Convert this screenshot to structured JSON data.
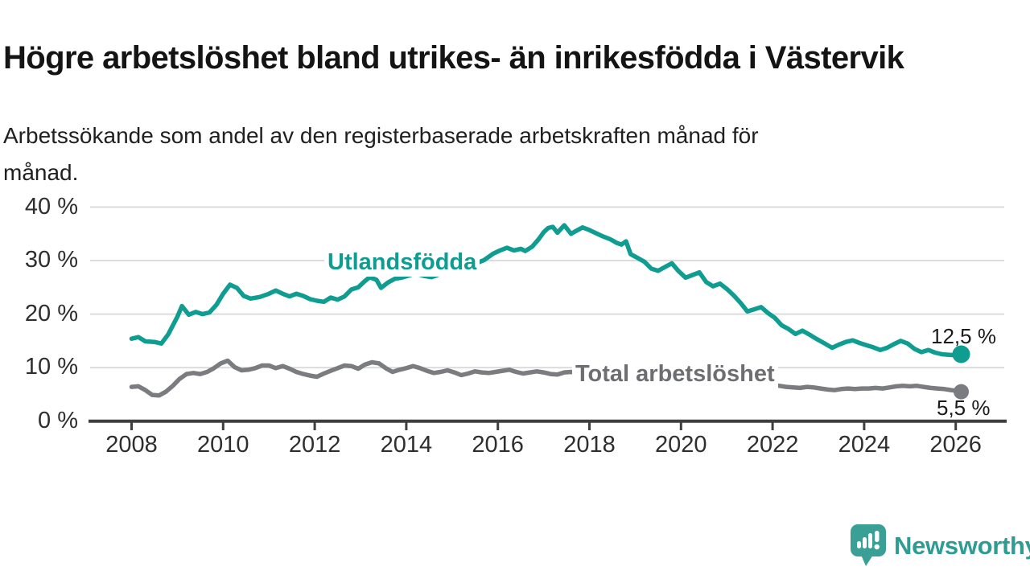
{
  "header": {
    "title": "Högre arbetslöshet bland utrikes- än inrikesfödda i Västervik",
    "subtitle_line1": "Arbetssökande som andel av den registerbaserade arbetskraften månad för",
    "subtitle_line2": "månad."
  },
  "chart_data": {
    "type": "line",
    "unit": "%",
    "grid": "horizontal",
    "legend_position": "inline-labels",
    "xlim": [
      2008,
      2026.4
    ],
    "ylim": [
      0,
      40
    ],
    "x_ticks": [
      2008,
      2010,
      2012,
      2014,
      2016,
      2018,
      2020,
      2022,
      2024,
      2026
    ],
    "y_ticks": [
      {
        "value": 40,
        "label": "40 %"
      },
      {
        "value": 30,
        "label": "30 %"
      },
      {
        "value": 20,
        "label": "20 %"
      },
      {
        "value": 10,
        "label": "10 %"
      },
      {
        "value": 0,
        "label": "0 %"
      }
    ],
    "series": [
      {
        "key": "utlandsfodda",
        "name": "Utlandsfödda",
        "color": "#0f9c91",
        "end_label": "12,5 %",
        "end_value": 12.5,
        "points": [
          [
            2008.0,
            15.4
          ],
          [
            2008.15,
            15.7
          ],
          [
            2008.3,
            14.9
          ],
          [
            2008.5,
            14.8
          ],
          [
            2008.65,
            14.5
          ],
          [
            2008.8,
            16.2
          ],
          [
            2009.0,
            19.5
          ],
          [
            2009.1,
            21.5
          ],
          [
            2009.25,
            19.9
          ],
          [
            2009.4,
            20.4
          ],
          [
            2009.55,
            20.0
          ],
          [
            2009.7,
            20.3
          ],
          [
            2009.85,
            21.7
          ],
          [
            2010.0,
            23.8
          ],
          [
            2010.15,
            25.5
          ],
          [
            2010.3,
            24.9
          ],
          [
            2010.45,
            23.4
          ],
          [
            2010.6,
            22.9
          ],
          [
            2010.8,
            23.2
          ],
          [
            2011.0,
            23.8
          ],
          [
            2011.15,
            24.4
          ],
          [
            2011.3,
            23.8
          ],
          [
            2011.45,
            23.3
          ],
          [
            2011.6,
            23.8
          ],
          [
            2011.75,
            23.4
          ],
          [
            2011.9,
            22.8
          ],
          [
            2012.05,
            22.5
          ],
          [
            2012.2,
            22.3
          ],
          [
            2012.35,
            23.1
          ],
          [
            2012.5,
            22.7
          ],
          [
            2012.65,
            23.3
          ],
          [
            2012.8,
            24.6
          ],
          [
            2012.95,
            25.0
          ],
          [
            2013.1,
            26.2
          ],
          [
            2013.2,
            26.9
          ],
          [
            2013.35,
            26.4
          ],
          [
            2013.45,
            24.9
          ],
          [
            2013.6,
            25.9
          ],
          [
            2013.75,
            26.6
          ],
          [
            2013.9,
            26.8
          ],
          [
            2014.05,
            27.2
          ],
          [
            2014.2,
            27.6
          ],
          [
            2014.4,
            27.1
          ],
          [
            2014.55,
            26.9
          ],
          [
            2014.75,
            27.5
          ],
          [
            2014.9,
            27.9
          ],
          [
            2015.1,
            28.4
          ],
          [
            2015.3,
            28.9
          ],
          [
            2015.5,
            29.4
          ],
          [
            2015.7,
            30.1
          ],
          [
            2015.9,
            31.3
          ],
          [
            2016.05,
            31.9
          ],
          [
            2016.2,
            32.4
          ],
          [
            2016.35,
            31.9
          ],
          [
            2016.5,
            32.2
          ],
          [
            2016.6,
            31.8
          ],
          [
            2016.75,
            32.6
          ],
          [
            2016.9,
            34.1
          ],
          [
            2017.0,
            35.3
          ],
          [
            2017.1,
            36.1
          ],
          [
            2017.2,
            36.3
          ],
          [
            2017.3,
            35.2
          ],
          [
            2017.45,
            36.6
          ],
          [
            2017.6,
            35.0
          ],
          [
            2017.7,
            35.5
          ],
          [
            2017.85,
            36.2
          ],
          [
            2018.0,
            35.7
          ],
          [
            2018.15,
            35.1
          ],
          [
            2018.3,
            34.5
          ],
          [
            2018.45,
            34.0
          ],
          [
            2018.6,
            33.3
          ],
          [
            2018.7,
            33.0
          ],
          [
            2018.8,
            33.6
          ],
          [
            2018.9,
            31.2
          ],
          [
            2019.05,
            30.5
          ],
          [
            2019.2,
            29.8
          ],
          [
            2019.35,
            28.5
          ],
          [
            2019.5,
            28.1
          ],
          [
            2019.65,
            28.8
          ],
          [
            2019.8,
            29.5
          ],
          [
            2019.95,
            28.0
          ],
          [
            2020.1,
            26.8
          ],
          [
            2020.25,
            27.3
          ],
          [
            2020.4,
            27.8
          ],
          [
            2020.55,
            26.0
          ],
          [
            2020.7,
            25.2
          ],
          [
            2020.85,
            25.7
          ],
          [
            2021.0,
            24.7
          ],
          [
            2021.15,
            23.5
          ],
          [
            2021.3,
            22.1
          ],
          [
            2021.45,
            20.5
          ],
          [
            2021.6,
            20.9
          ],
          [
            2021.75,
            21.3
          ],
          [
            2021.9,
            20.2
          ],
          [
            2022.05,
            19.3
          ],
          [
            2022.2,
            17.9
          ],
          [
            2022.35,
            17.2
          ],
          [
            2022.5,
            16.3
          ],
          [
            2022.65,
            16.9
          ],
          [
            2022.8,
            16.2
          ],
          [
            2022.95,
            15.4
          ],
          [
            2023.1,
            14.7
          ],
          [
            2023.3,
            13.7
          ],
          [
            2023.45,
            14.3
          ],
          [
            2023.6,
            14.8
          ],
          [
            2023.75,
            15.1
          ],
          [
            2023.9,
            14.6
          ],
          [
            2024.05,
            14.2
          ],
          [
            2024.2,
            13.8
          ],
          [
            2024.35,
            13.3
          ],
          [
            2024.5,
            13.7
          ],
          [
            2024.65,
            14.4
          ],
          [
            2024.8,
            15.0
          ],
          [
            2024.95,
            14.5
          ],
          [
            2025.1,
            13.5
          ],
          [
            2025.25,
            12.9
          ],
          [
            2025.4,
            13.3
          ],
          [
            2025.55,
            12.8
          ],
          [
            2025.7,
            12.5
          ],
          [
            2025.85,
            12.4
          ],
          [
            2026.0,
            12.3
          ],
          [
            2026.12,
            12.5
          ]
        ]
      },
      {
        "key": "total",
        "name": "Total arbetslöshet",
        "color": "#7b7c80",
        "end_label": "5,5 %",
        "end_value": 5.5,
        "points": [
          [
            2008.0,
            6.4
          ],
          [
            2008.15,
            6.5
          ],
          [
            2008.3,
            5.8
          ],
          [
            2008.45,
            4.9
          ],
          [
            2008.6,
            4.8
          ],
          [
            2008.75,
            5.5
          ],
          [
            2008.9,
            6.6
          ],
          [
            2009.05,
            7.9
          ],
          [
            2009.2,
            8.8
          ],
          [
            2009.35,
            9.0
          ],
          [
            2009.5,
            8.8
          ],
          [
            2009.65,
            9.2
          ],
          [
            2009.8,
            9.9
          ],
          [
            2009.95,
            10.8
          ],
          [
            2010.1,
            11.3
          ],
          [
            2010.25,
            10.1
          ],
          [
            2010.4,
            9.5
          ],
          [
            2010.55,
            9.6
          ],
          [
            2010.7,
            9.9
          ],
          [
            2010.85,
            10.4
          ],
          [
            2011.0,
            10.4
          ],
          [
            2011.15,
            9.9
          ],
          [
            2011.3,
            10.3
          ],
          [
            2011.45,
            9.8
          ],
          [
            2011.6,
            9.2
          ],
          [
            2011.75,
            8.8
          ],
          [
            2011.9,
            8.5
          ],
          [
            2012.05,
            8.3
          ],
          [
            2012.2,
            8.9
          ],
          [
            2012.35,
            9.4
          ],
          [
            2012.5,
            9.9
          ],
          [
            2012.65,
            10.4
          ],
          [
            2012.8,
            10.3
          ],
          [
            2012.95,
            9.8
          ],
          [
            2013.1,
            10.6
          ],
          [
            2013.25,
            11.0
          ],
          [
            2013.4,
            10.8
          ],
          [
            2013.55,
            9.9
          ],
          [
            2013.7,
            9.2
          ],
          [
            2013.85,
            9.6
          ],
          [
            2014.0,
            9.9
          ],
          [
            2014.15,
            10.3
          ],
          [
            2014.3,
            9.9
          ],
          [
            2014.45,
            9.4
          ],
          [
            2014.6,
            9.0
          ],
          [
            2014.75,
            9.2
          ],
          [
            2014.9,
            9.5
          ],
          [
            2015.05,
            9.1
          ],
          [
            2015.2,
            8.6
          ],
          [
            2015.35,
            8.9
          ],
          [
            2015.5,
            9.3
          ],
          [
            2015.65,
            9.1
          ],
          [
            2015.8,
            9.0
          ],
          [
            2015.95,
            9.2
          ],
          [
            2016.1,
            9.4
          ],
          [
            2016.25,
            9.6
          ],
          [
            2016.4,
            9.2
          ],
          [
            2016.55,
            8.9
          ],
          [
            2016.7,
            9.1
          ],
          [
            2016.85,
            9.3
          ],
          [
            2017.0,
            9.1
          ],
          [
            2017.15,
            8.8
          ],
          [
            2017.3,
            8.7
          ],
          [
            2017.45,
            9.1
          ],
          [
            2017.6,
            9.2
          ],
          [
            2017.75,
            8.9
          ],
          [
            2017.9,
            8.8
          ],
          [
            2018.05,
            9.0
          ],
          [
            2018.2,
            9.2
          ],
          [
            2018.35,
            8.9
          ],
          [
            2018.5,
            8.5
          ],
          [
            2018.65,
            8.6
          ],
          [
            2018.8,
            8.7
          ],
          [
            2018.95,
            8.4
          ],
          [
            2019.15,
            8.1
          ],
          [
            2019.35,
            7.9
          ],
          [
            2019.55,
            8.1
          ],
          [
            2019.75,
            8.3
          ],
          [
            2019.95,
            8.4
          ],
          [
            2020.15,
            8.7
          ],
          [
            2020.35,
            8.9
          ],
          [
            2020.55,
            8.6
          ],
          [
            2020.75,
            8.2
          ],
          [
            2020.95,
            7.9
          ],
          [
            2021.15,
            7.6
          ],
          [
            2021.35,
            7.3
          ],
          [
            2021.55,
            7.1
          ],
          [
            2021.75,
            6.9
          ],
          [
            2021.95,
            6.8
          ],
          [
            2022.15,
            6.6
          ],
          [
            2022.3,
            6.4
          ],
          [
            2022.45,
            6.3
          ],
          [
            2022.6,
            6.2
          ],
          [
            2022.75,
            6.4
          ],
          [
            2022.9,
            6.3
          ],
          [
            2023.05,
            6.1
          ],
          [
            2023.2,
            5.9
          ],
          [
            2023.35,
            5.8
          ],
          [
            2023.5,
            6.0
          ],
          [
            2023.65,
            6.1
          ],
          [
            2023.8,
            6.0
          ],
          [
            2023.95,
            6.1
          ],
          [
            2024.1,
            6.1
          ],
          [
            2024.25,
            6.2
          ],
          [
            2024.4,
            6.1
          ],
          [
            2024.55,
            6.3
          ],
          [
            2024.7,
            6.5
          ],
          [
            2024.85,
            6.6
          ],
          [
            2025.0,
            6.5
          ],
          [
            2025.15,
            6.6
          ],
          [
            2025.3,
            6.4
          ],
          [
            2025.45,
            6.2
          ],
          [
            2025.6,
            6.1
          ],
          [
            2025.75,
            6.0
          ],
          [
            2025.9,
            5.8
          ],
          [
            2026.0,
            5.7
          ],
          [
            2026.12,
            5.5
          ]
        ]
      }
    ],
    "style": {
      "gridline_color": "#dcdcdc",
      "axis_color": "#3e3e40",
      "tick_label_color": "#2e2e2e",
      "end_label_color": "#1b1b1b"
    }
  },
  "footer": {
    "brand": "Newsworthy",
    "logo_color": "#3aa096"
  }
}
